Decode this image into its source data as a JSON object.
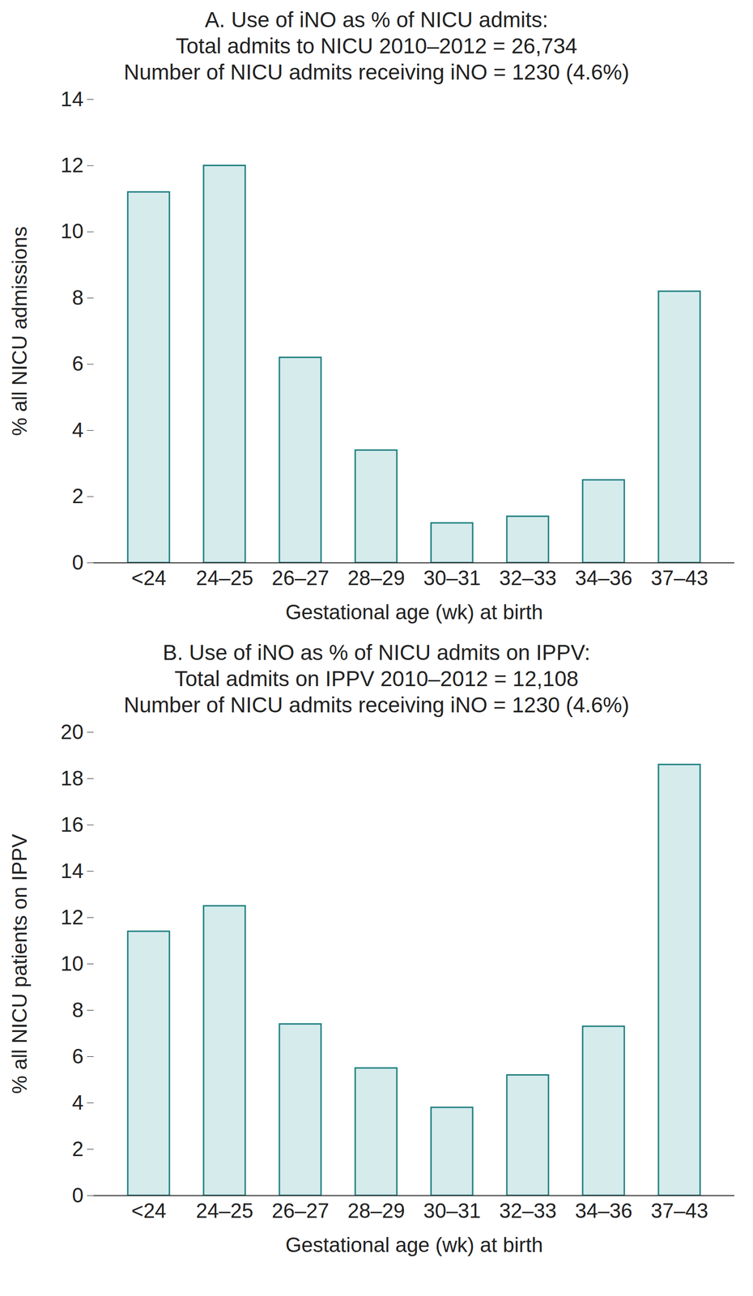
{
  "chart_data": [
    {
      "type": "bar",
      "title": "A. Use of iNO as % of NICU admits:\nTotal admits to NICU 2010–2012 = 26,734\nNumber of NICU admits receiving iNO = 1230 (4.6%)",
      "x_label": "Gestational age (wk) at birth",
      "y_label": "% all NICU admissions",
      "categories": [
        "<24",
        "24–25",
        "26–27",
        "28–29",
        "30–31",
        "32–33",
        "34–36",
        "37–43"
      ],
      "values": [
        11.2,
        12.0,
        6.2,
        3.4,
        1.2,
        1.4,
        2.5,
        8.2
      ],
      "color": "#d5ebec",
      "ylim": [
        0,
        14
      ],
      "yticks": [
        0,
        2,
        4,
        6,
        8,
        10,
        12,
        14
      ],
      "grid": false
    },
    {
      "type": "bar",
      "title": "B. Use of iNO as % of NICU admits on IPPV:\nTotal admits on IPPV 2010–2012 = 12,108\nNumber of NICU admits receiving iNO = 1230 (4.6%)",
      "x_label": "Gestational age (wk) at birth",
      "y_label": "% all NICU patients on IPPV",
      "categories": [
        "<24",
        "24–25",
        "26–27",
        "28–29",
        "30–31",
        "32–33",
        "34–36",
        "37–43"
      ],
      "values": [
        11.4,
        12.5,
        7.4,
        5.5,
        3.8,
        5.2,
        7.3,
        18.6
      ],
      "color": "#d5ebec",
      "ylim": [
        0,
        20
      ],
      "yticks": [
        0,
        2,
        4,
        6,
        8,
        10,
        12,
        14,
        16,
        18,
        20
      ],
      "grid": false
    }
  ]
}
